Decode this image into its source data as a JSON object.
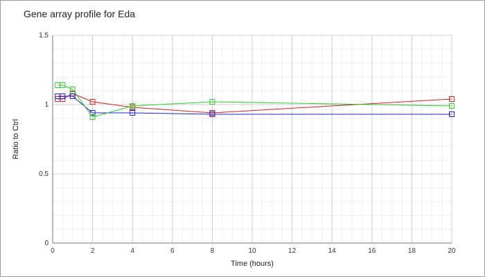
{
  "chart_data": {
    "type": "line",
    "title": "Gene array profile for Eda",
    "xlabel": "Time (hours)",
    "ylabel": "Ratio to Ctrl",
    "xlim": [
      0,
      20
    ],
    "ylim": [
      0,
      1.5
    ],
    "x_ticks": [
      "0",
      "2",
      "4",
      "6",
      "8",
      "10",
      "12",
      "14",
      "16",
      "18",
      "20"
    ],
    "y_ticks": [
      "0",
      "0.5",
      "1",
      "1.5"
    ],
    "grid": true,
    "marker": "square",
    "series": [
      {
        "color": "#cc2020",
        "x": [
          0.25,
          0.5,
          1,
          2,
          4,
          8,
          20
        ],
        "y": [
          1.04,
          1.04,
          1.08,
          1.02,
          0.98,
          0.94,
          1.04
        ]
      },
      {
        "color": "#2020cc",
        "x": [
          0.25,
          0.5,
          1,
          2,
          4,
          8,
          20
        ],
        "y": [
          1.06,
          1.06,
          1.06,
          0.94,
          0.94,
          0.93,
          0.93
        ]
      },
      {
        "color": "#30cc30",
        "x": [
          0.25,
          0.5,
          1,
          2,
          4,
          8,
          20
        ],
        "y": [
          1.14,
          1.14,
          1.11,
          0.91,
          0.99,
          1.02,
          0.99
        ]
      }
    ]
  }
}
